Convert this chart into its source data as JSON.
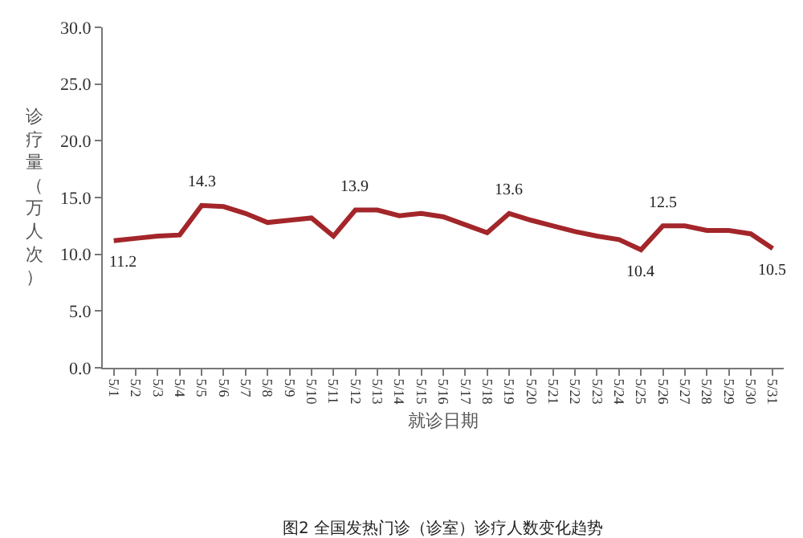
{
  "chart_data": {
    "type": "line",
    "xlabel": "就诊日期",
    "ylabel": "诊疗量（万人次）",
    "categories": [
      "5/1",
      "5/2",
      "5/3",
      "5/4",
      "5/5",
      "5/6",
      "5/7",
      "5/8",
      "5/9",
      "5/10",
      "5/11",
      "5/12",
      "5/13",
      "5/14",
      "5/15",
      "5/16",
      "5/17",
      "5/18",
      "5/19",
      "5/20",
      "5/21",
      "5/22",
      "5/23",
      "5/24",
      "5/25",
      "5/26",
      "5/27",
      "5/28",
      "5/29",
      "5/30",
      "5/31"
    ],
    "series": [
      {
        "color": "#a3262a",
        "values": [
          11.2,
          11.4,
          11.6,
          11.7,
          14.3,
          14.2,
          13.6,
          12.8,
          13.0,
          13.2,
          11.6,
          13.9,
          13.9,
          13.4,
          13.6,
          13.3,
          12.6,
          11.9,
          13.6,
          13.0,
          12.5,
          12.0,
          11.6,
          11.3,
          10.4,
          12.5,
          12.5,
          12.1,
          12.1,
          11.8,
          10.5
        ],
        "value_labels": [
          "11.2",
          null,
          null,
          null,
          "14.3",
          null,
          null,
          null,
          null,
          null,
          null,
          "13.9",
          null,
          null,
          null,
          null,
          null,
          null,
          "13.6",
          null,
          null,
          null,
          null,
          null,
          "10.4",
          "12.5",
          null,
          null,
          null,
          null,
          "10.5"
        ]
      }
    ],
    "ylim": [
      0,
      30
    ],
    "yticks": [
      {
        "value": 0,
        "label": "0.0"
      },
      {
        "value": 5,
        "label": "5.0"
      },
      {
        "value": 10,
        "label": "10.0"
      },
      {
        "value": 15,
        "label": "15.0"
      },
      {
        "value": 20,
        "label": "20.0"
      },
      {
        "value": 25,
        "label": "25.0"
      },
      {
        "value": 30,
        "label": "30.0"
      }
    ],
    "marker": "none",
    "line_style": "solid",
    "annotations": [
      "图2 全国发热门诊（诊室）诊疗人数变化趋势"
    ]
  }
}
